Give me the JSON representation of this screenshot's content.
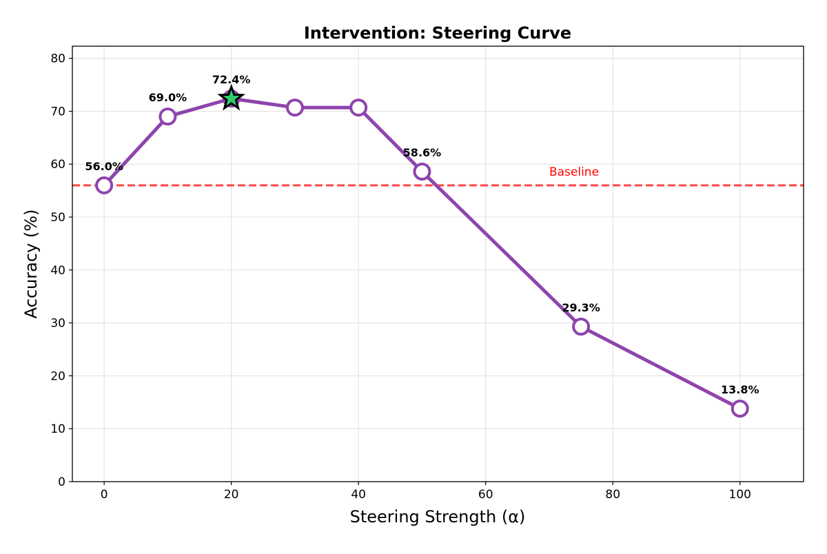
{
  "chart_data": {
    "type": "line",
    "title": "Intervention: Steering Curve",
    "xlabel": "Steering Strength (α)",
    "ylabel": "Accuracy (%)",
    "xlim": [
      -5,
      110
    ],
    "ylim": [
      0,
      82.3
    ],
    "xticks": [
      0,
      20,
      40,
      60,
      80,
      100
    ],
    "yticks": [
      0,
      10,
      20,
      30,
      40,
      50,
      60,
      70,
      80
    ],
    "grid": true,
    "series": [
      {
        "x": [
          0,
          10,
          20,
          30,
          40,
          50,
          75,
          100
        ],
        "y": [
          56.0,
          69.0,
          72.4,
          70.7,
          70.7,
          58.6,
          29.3,
          13.8
        ],
        "color": "#8e44ad",
        "marker": "open-circle"
      }
    ],
    "data_labels": [
      {
        "x": 0,
        "y": 56.0,
        "text": "56.0%"
      },
      {
        "x": 10,
        "y": 69.0,
        "text": "69.0%"
      },
      {
        "x": 20,
        "y": 72.4,
        "text": "72.4%"
      },
      {
        "x": 50,
        "y": 58.6,
        "text": "58.6%"
      },
      {
        "x": 75,
        "y": 29.3,
        "text": "29.3%"
      },
      {
        "x": 100,
        "y": 13.8,
        "text": "13.8%"
      }
    ],
    "best_point": {
      "x": 20,
      "y": 72.4,
      "marker": "star",
      "color": "#2ecc71"
    },
    "baseline": {
      "y": 56.0,
      "label": "Baseline",
      "color": "#ff4444",
      "style": "dashed"
    }
  }
}
